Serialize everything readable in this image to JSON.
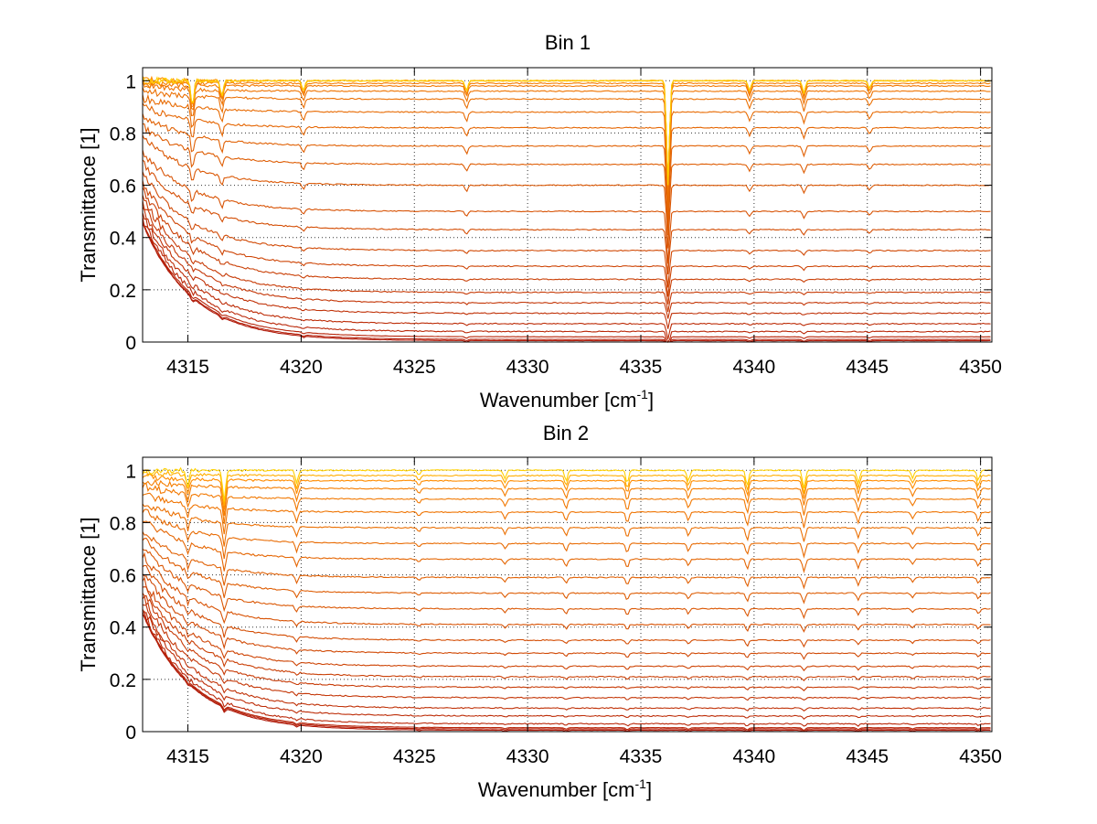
{
  "chart_data": [
    {
      "type": "line",
      "title": "Bin 1",
      "xlabel": "Wavenumber [cm",
      "xlabel_sup": "-1",
      "xlabel_end": "]",
      "ylabel": "Transmittance [1]",
      "xlim": [
        4313,
        4350.5
      ],
      "ylim": [
        0,
        1.05
      ],
      "xticks": [
        4315,
        4320,
        4325,
        4330,
        4335,
        4340,
        4345,
        4350
      ],
      "xtick_labels": [
        "4315",
        "4320",
        "4325",
        "4330",
        "4335",
        "4340",
        "4345",
        "4350"
      ],
      "yticks": [
        0,
        0.2,
        0.4,
        0.6,
        0.8,
        1
      ],
      "ytick_labels": [
        "0",
        "0.2",
        "0.4",
        "0.6",
        "0.8",
        "1"
      ],
      "grid": true,
      "series_levels": [
        0.005,
        0.01,
        0.02,
        0.04,
        0.07,
        0.11,
        0.15,
        0.19,
        0.24,
        0.29,
        0.35,
        0.43,
        0.5,
        0.6,
        0.68,
        0.75,
        0.82,
        0.88,
        0.93,
        0.96,
        0.98,
        0.99,
        1.0,
        1.0,
        1.0
      ],
      "absorption_lines": [
        {
          "x": 4315.2,
          "depth": 0.1
        },
        {
          "x": 4316.5,
          "depth": 0.06
        },
        {
          "x": 4320.1,
          "depth": 0.04
        },
        {
          "x": 4327.3,
          "depth": 0.04
        },
        {
          "x": 4336.2,
          "depth": 0.4
        },
        {
          "x": 4339.8,
          "depth": 0.04
        },
        {
          "x": 4342.2,
          "depth": 0.05
        },
        {
          "x": 4345.1,
          "depth": 0.03
        }
      ],
      "colors": {
        "low": "#b01a0a",
        "high": "#ff8c00",
        "top": "#ffd000"
      }
    },
    {
      "type": "line",
      "title": "Bin 2",
      "xlabel": "Wavenumber [cm",
      "xlabel_sup": "-1",
      "xlabel_end": "]",
      "ylabel": "Transmittance [1]",
      "xlim": [
        4313,
        4350.5
      ],
      "ylim": [
        0,
        1.05
      ],
      "xticks": [
        4315,
        4320,
        4325,
        4330,
        4335,
        4340,
        4345,
        4350
      ],
      "xtick_labels": [
        "4315",
        "4320",
        "4325",
        "4330",
        "4335",
        "4340",
        "4345",
        "4350"
      ],
      "yticks": [
        0,
        0.2,
        0.4,
        0.6,
        0.8,
        1
      ],
      "ytick_labels": [
        "0",
        "0.2",
        "0.4",
        "0.6",
        "0.8",
        "1"
      ],
      "grid": true,
      "series_levels": [
        0.005,
        0.01,
        0.015,
        0.03,
        0.06,
        0.09,
        0.13,
        0.17,
        0.21,
        0.25,
        0.3,
        0.35,
        0.41,
        0.47,
        0.53,
        0.59,
        0.66,
        0.72,
        0.78,
        0.84,
        0.89,
        0.93,
        0.96,
        0.98,
        1.0
      ],
      "absorption_lines": [
        {
          "x": 4315.0,
          "depth": 0.06
        },
        {
          "x": 4316.6,
          "depth": 0.12
        },
        {
          "x": 4319.8,
          "depth": 0.05
        },
        {
          "x": 4325.2,
          "depth": 0.02
        },
        {
          "x": 4329.0,
          "depth": 0.03
        },
        {
          "x": 4331.7,
          "depth": 0.04
        },
        {
          "x": 4334.4,
          "depth": 0.05
        },
        {
          "x": 4337.1,
          "depth": 0.04
        },
        {
          "x": 4339.7,
          "depth": 0.06
        },
        {
          "x": 4342.2,
          "depth": 0.07
        },
        {
          "x": 4344.6,
          "depth": 0.05
        },
        {
          "x": 4347.0,
          "depth": 0.03
        },
        {
          "x": 4349.9,
          "depth": 0.04
        }
      ],
      "colors": {
        "low": "#b01a0a",
        "high": "#ff8c00",
        "top": "#ffd000"
      }
    }
  ]
}
